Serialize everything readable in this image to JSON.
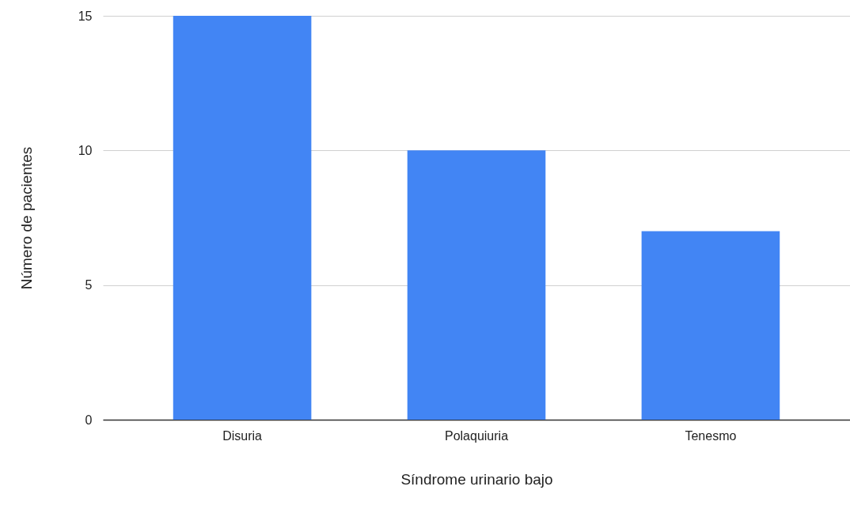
{
  "chart_data": {
    "type": "bar",
    "xlabel": "Síndrome urinario bajo",
    "ylabel": "Número de pacientes",
    "categories": [
      "Disuria",
      "Polaquiuria",
      "Tenesmo"
    ],
    "values": [
      15,
      10,
      7
    ],
    "color": "#4285f4",
    "ylim": [
      0,
      15
    ],
    "yticks": [
      0,
      5,
      10,
      15
    ],
    "grid": "y"
  }
}
